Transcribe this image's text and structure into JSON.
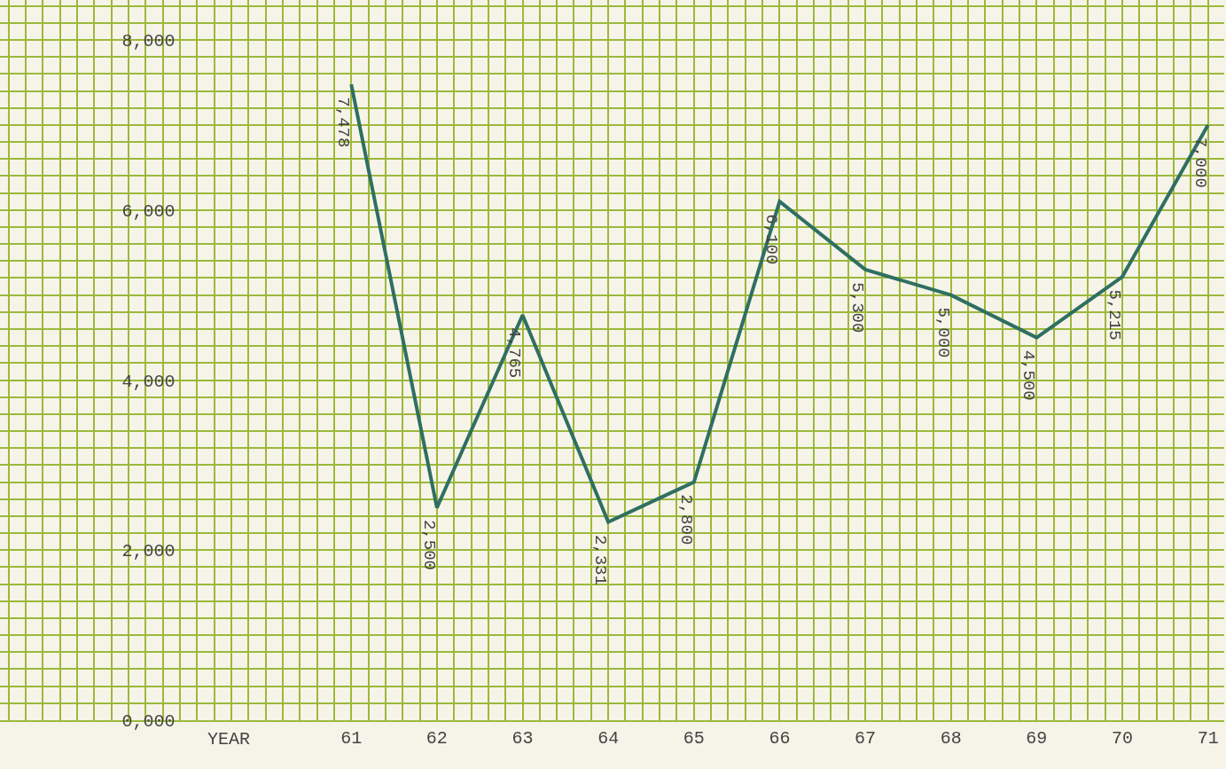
{
  "chart_data": {
    "type": "line",
    "xlabel": "YEAR",
    "x": [
      61,
      62,
      63,
      64,
      65,
      66,
      67,
      68,
      69,
      70,
      71
    ],
    "series": [
      {
        "color": "#2f6f62",
        "values": [
          7478,
          2500,
          4765,
          2331,
          2800,
          6100,
          5300,
          5000,
          4500,
          5215,
          7000
        ],
        "value_labels": [
          "7,478",
          "2,500",
          "4,765",
          "2,331",
          "2,800",
          "6,100",
          "5,300",
          "5,000",
          "4,500",
          "5,215",
          "7,000"
        ]
      }
    ],
    "xlim": [
      56.9,
      71.19
    ],
    "xticks": [
      {
        "value": 57,
        "label": null
      },
      {
        "value": 57.2,
        "label": null
      },
      {
        "value": 57.4,
        "label": null
      },
      {
        "value": 57.6,
        "label": null
      },
      {
        "value": 57.8,
        "label": null
      },
      {
        "value": 58,
        "label": null
      },
      {
        "value": 58.2,
        "label": null
      },
      {
        "value": 58.4,
        "label": null
      },
      {
        "value": 58.6,
        "label": null
      },
      {
        "value": 58.8,
        "label": null
      },
      {
        "value": 59,
        "label": null
      },
      {
        "value": 59.2,
        "label": null
      },
      {
        "value": 59.4,
        "label": null
      },
      {
        "value": 59.6,
        "label": null
      },
      {
        "value": 59.8,
        "label": null
      },
      {
        "value": 60,
        "label": null
      },
      {
        "value": 60.2,
        "label": null
      },
      {
        "value": 60.4,
        "label": null
      },
      {
        "value": 60.6,
        "label": null
      },
      {
        "value": 60.8,
        "label": null
      },
      61,
      {
        "value": 61.2,
        "label": null
      },
      {
        "value": 61.4,
        "label": null
      },
      {
        "value": 61.6,
        "label": null
      },
      {
        "value": 61.8,
        "label": null
      },
      62,
      {
        "value": 62.2,
        "label": null
      },
      {
        "value": 62.4,
        "label": null
      },
      {
        "value": 62.6,
        "label": null
      },
      {
        "value": 62.8,
        "label": null
      },
      63,
      {
        "value": 63.2,
        "label": null
      },
      {
        "value": 63.4,
        "label": null
      },
      {
        "value": 63.6,
        "label": null
      },
      {
        "value": 63.8,
        "label": null
      },
      64,
      {
        "value": 64.2,
        "label": null
      },
      {
        "value": 64.4,
        "label": null
      },
      {
        "value": 64.6,
        "label": null
      },
      {
        "value": 64.8,
        "label": null
      },
      65,
      {
        "value": 65.2,
        "label": null
      },
      {
        "value": 65.4,
        "label": null
      },
      {
        "value": 65.6,
        "label": null
      },
      {
        "value": 65.8,
        "label": null
      },
      66,
      {
        "value": 66.2,
        "label": null
      },
      {
        "value": 66.4,
        "label": null
      },
      {
        "value": 66.6,
        "label": null
      },
      {
        "value": 66.8,
        "label": null
      },
      67,
      {
        "value": 67.2,
        "label": null
      },
      {
        "value": 67.4,
        "label": null
      },
      {
        "value": 67.6,
        "label": null
      },
      {
        "value": 67.8,
        "label": null
      },
      68,
      {
        "value": 68.2,
        "label": null
      },
      {
        "value": 68.4,
        "label": null
      },
      {
        "value": 68.6,
        "label": null
      },
      {
        "value": 68.8,
        "label": null
      },
      69,
      {
        "value": 69.2,
        "label": null
      },
      {
        "value": 69.4,
        "label": null
      },
      {
        "value": 69.6,
        "label": null
      },
      {
        "value": 69.8,
        "label": null
      },
      70,
      {
        "value": 70.2,
        "label": null
      },
      {
        "value": 70.4,
        "label": null
      },
      {
        "value": 70.6,
        "label": null
      },
      {
        "value": 70.8,
        "label": null
      },
      71
    ],
    "ylim": [
      0,
      8470
    ],
    "yticks": [
      {
        "value": 0,
        "label": "0,000"
      },
      {
        "value": 200,
        "label": null
      },
      {
        "value": 400,
        "label": null
      },
      {
        "value": 600,
        "label": null
      },
      {
        "value": 800,
        "label": null
      },
      {
        "value": 1000,
        "label": null
      },
      {
        "value": 1200,
        "label": null
      },
      {
        "value": 1400,
        "label": null
      },
      {
        "value": 1600,
        "label": null
      },
      {
        "value": 1800,
        "label": null
      },
      {
        "value": 2000,
        "label": "2,000"
      },
      {
        "value": 2200,
        "label": null
      },
      {
        "value": 2400,
        "label": null
      },
      {
        "value": 2600,
        "label": null
      },
      {
        "value": 2800,
        "label": null
      },
      {
        "value": 3000,
        "label": null
      },
      {
        "value": 3200,
        "label": null
      },
      {
        "value": 3400,
        "label": null
      },
      {
        "value": 3600,
        "label": null
      },
      {
        "value": 3800,
        "label": null
      },
      {
        "value": 4000,
        "label": "4,000"
      },
      {
        "value": 4200,
        "label": null
      },
      {
        "value": 4400,
        "label": null
      },
      {
        "value": 4600,
        "label": null
      },
      {
        "value": 4800,
        "label": null
      },
      {
        "value": 5000,
        "label": null
      },
      {
        "value": 5200,
        "label": null
      },
      {
        "value": 5400,
        "label": null
      },
      {
        "value": 5600,
        "label": null
      },
      {
        "value": 5800,
        "label": null
      },
      {
        "value": 6000,
        "label": "6,000"
      },
      {
        "value": 6200,
        "label": null
      },
      {
        "value": 6400,
        "label": null
      },
      {
        "value": 6600,
        "label": null
      },
      {
        "value": 6800,
        "label": null
      },
      {
        "value": 7000,
        "label": null
      },
      {
        "value": 7200,
        "label": null
      },
      {
        "value": 7400,
        "label": null
      },
      {
        "value": 7600,
        "label": null
      },
      {
        "value": 7800,
        "label": null
      },
      {
        "value": 8000,
        "label": "8,000"
      },
      {
        "value": 8200,
        "label": null
      },
      {
        "value": 8400,
        "label": null
      }
    ],
    "grid": true,
    "line_style": "solid"
  }
}
